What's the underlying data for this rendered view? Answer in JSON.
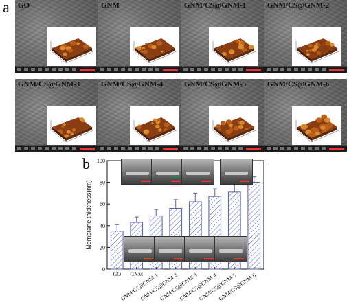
{
  "panel_a_label": "a",
  "panel_b_label": "b",
  "sem_panels": [
    {
      "title": "GO"
    },
    {
      "title": "GNM"
    },
    {
      "title": "GNM/CS@GNM-1"
    },
    {
      "title": "GNM/CS@GNM-2"
    },
    {
      "title": "GNM/CS@GNM-3"
    },
    {
      "title": "GNM/CS@GNM-4"
    },
    {
      "title": "GNM/CS@GNM-5"
    },
    {
      "title": "GNM/CS@GNM-6"
    }
  ],
  "chart_data": {
    "type": "bar",
    "title": "",
    "xlabel": "",
    "ylabel": "Membrane thickness(nm)",
    "categories": [
      "GO",
      "GNM",
      "GNM/CS@GNM-1",
      "GNM/CS@GNM-2",
      "GNM/CS@GNM-3",
      "GNM/CS@GNM-4",
      "GNM/CS@GNM-5",
      "GNM/CS@GNM-6"
    ],
    "values": [
      35,
      43,
      49,
      56,
      62,
      67,
      71,
      80
    ],
    "errors": [
      6,
      5,
      6,
      8,
      8,
      7,
      7,
      5
    ],
    "ylim": [
      0,
      100
    ],
    "yticks": [
      0,
      20,
      40,
      60,
      80,
      100
    ],
    "bar_pattern": "diagonal-hatch",
    "bar_color": "#5a5ab4",
    "grid": false,
    "legend": "none"
  }
}
